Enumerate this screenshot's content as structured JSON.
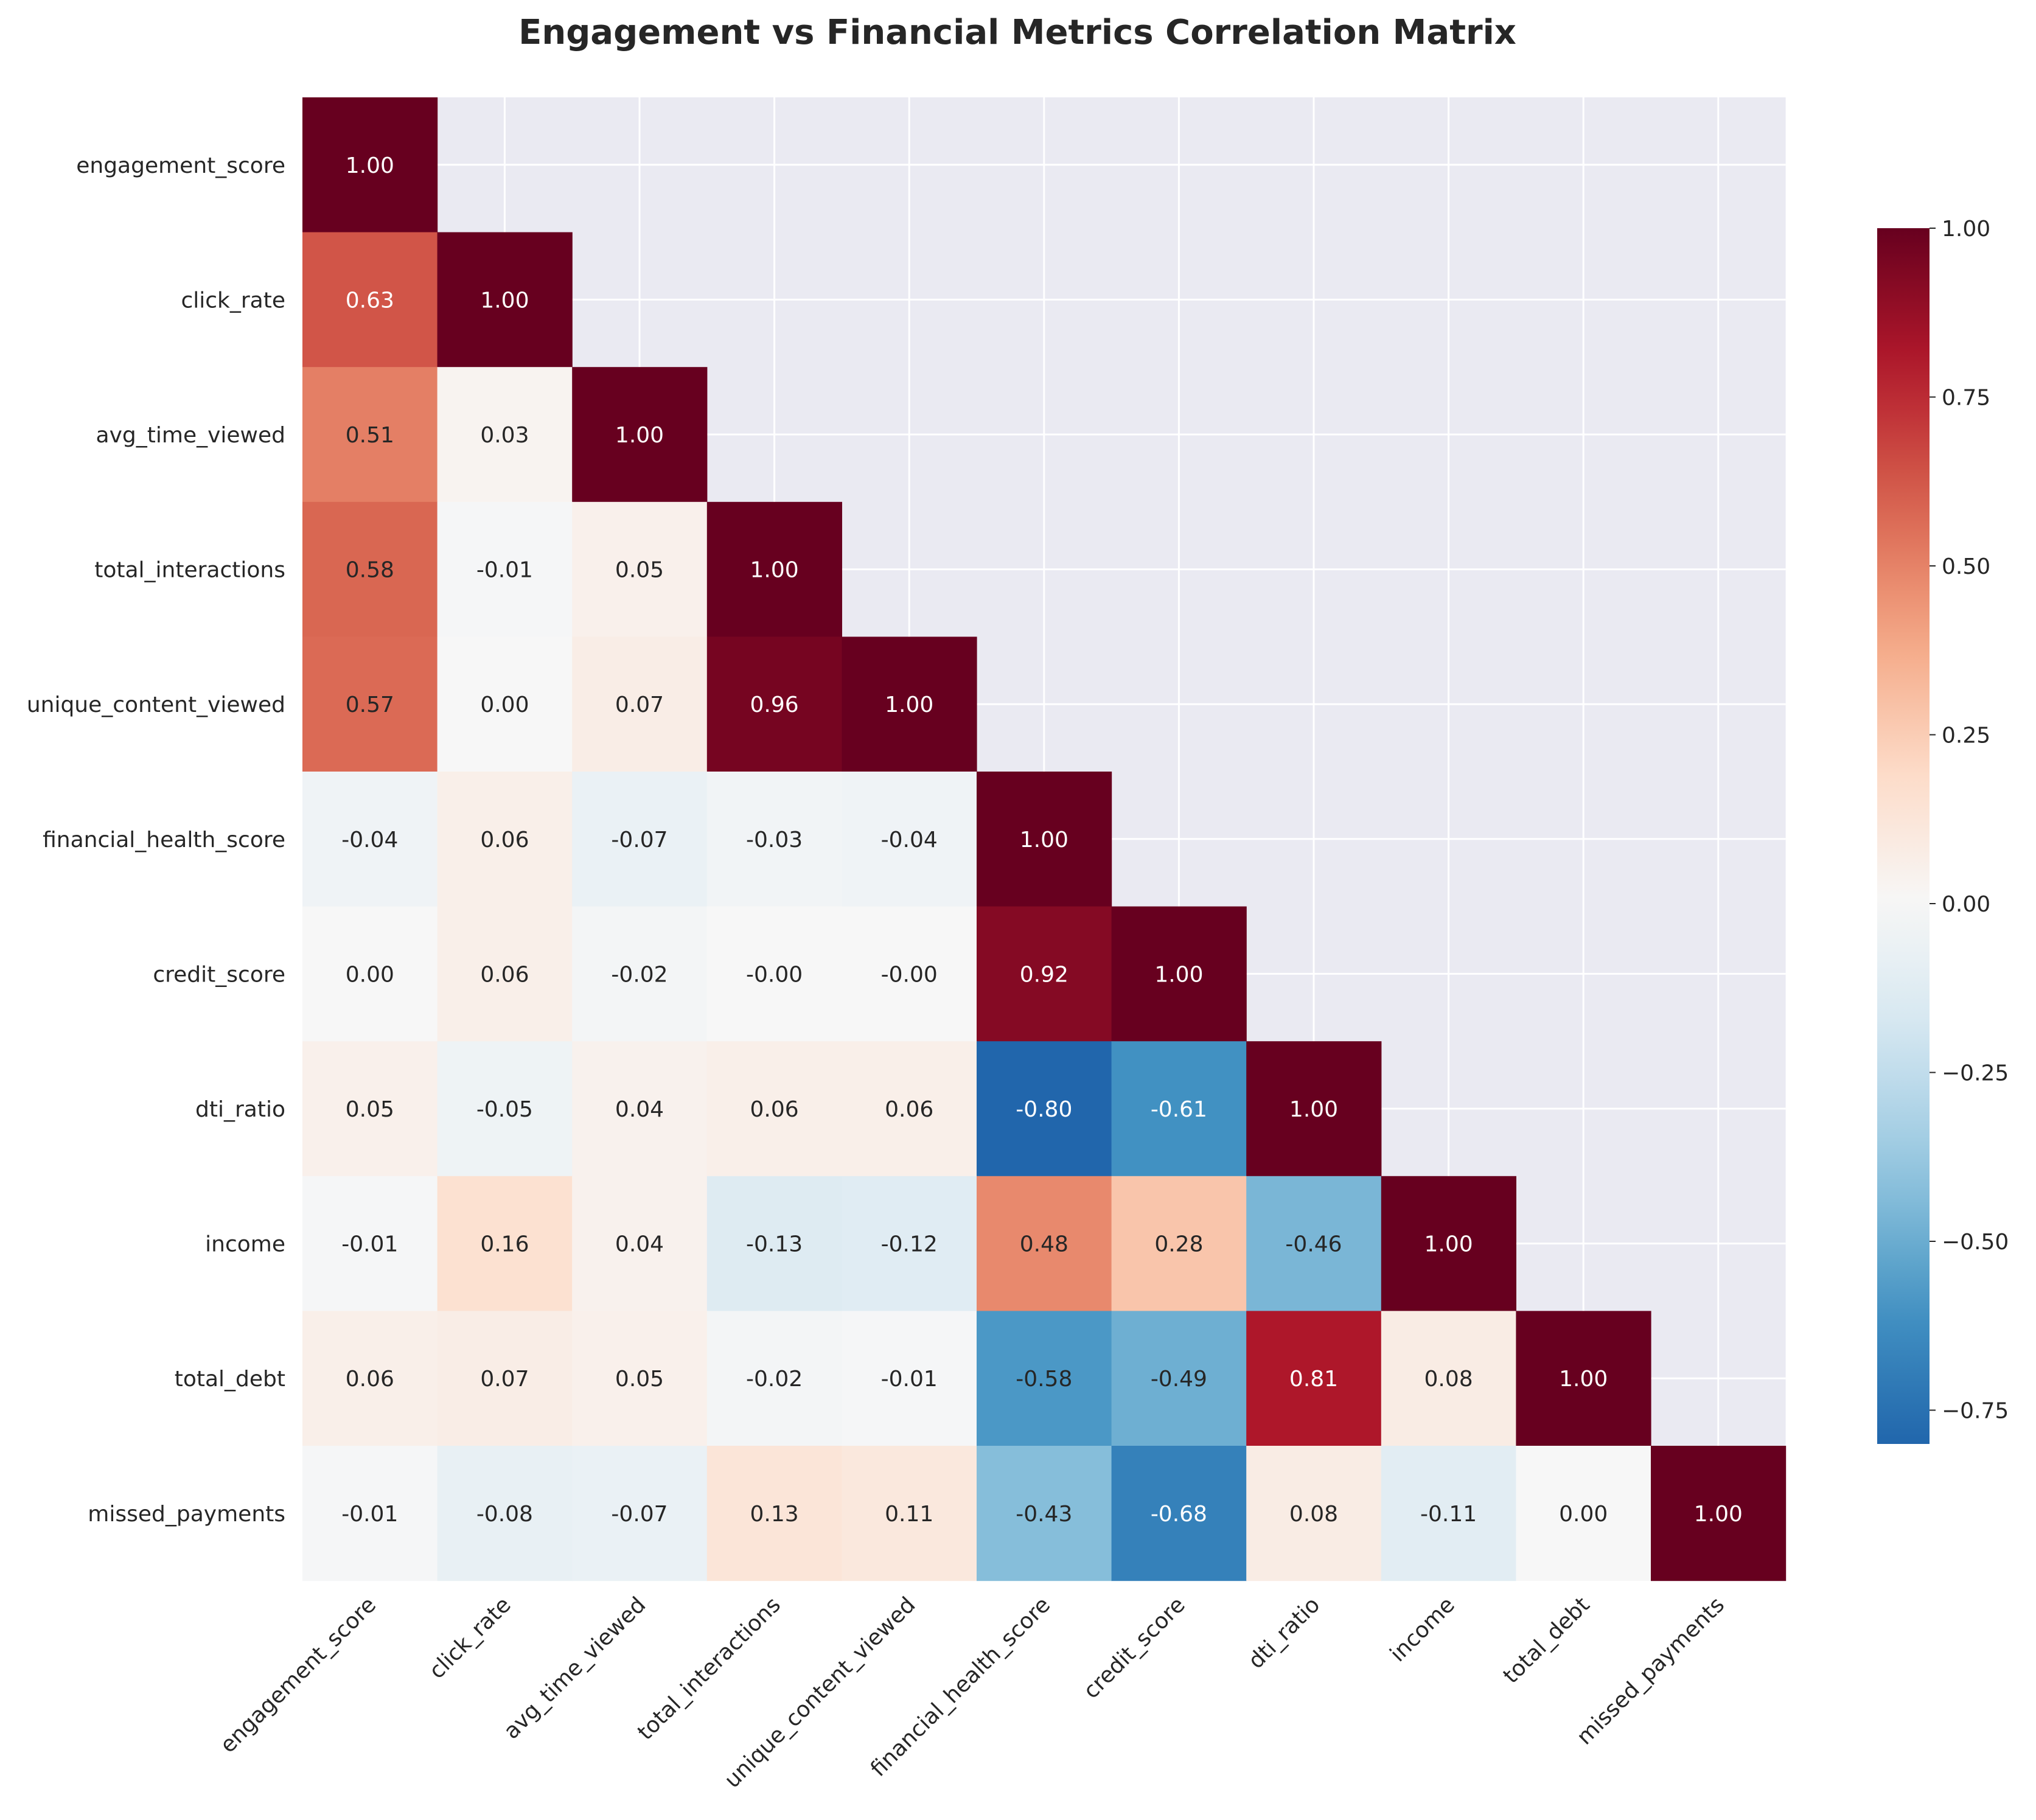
{
  "chart_data": {
    "type": "heatmap",
    "title": "Engagement vs Financial Metrics Correlation Matrix",
    "xlabel": "",
    "ylabel": "",
    "mask": "upper-triangle",
    "grid": true,
    "categories": [
      "engagement_score",
      "click_rate",
      "avg_time_viewed",
      "total_interactions",
      "unique_content_viewed",
      "financial_health_score",
      "credit_score",
      "dti_ratio",
      "income",
      "total_debt",
      "missed_payments"
    ],
    "values": [
      [
        1.0
      ],
      [
        0.63,
        1.0
      ],
      [
        0.51,
        0.03,
        1.0
      ],
      [
        0.58,
        -0.01,
        0.05,
        1.0
      ],
      [
        0.57,
        0.0,
        0.07,
        0.96,
        1.0
      ],
      [
        -0.04,
        0.06,
        -0.07,
        -0.03,
        -0.04,
        1.0
      ],
      [
        0.0,
        0.06,
        -0.02,
        -0.0,
        -0.0,
        0.92,
        1.0
      ],
      [
        0.05,
        -0.05,
        0.04,
        0.06,
        0.06,
        -0.8,
        -0.61,
        1.0
      ],
      [
        -0.01,
        0.16,
        0.04,
        -0.13,
        -0.12,
        0.48,
        0.28,
        -0.46,
        1.0
      ],
      [
        0.06,
        0.07,
        0.05,
        -0.02,
        -0.01,
        -0.58,
        -0.49,
        0.81,
        0.08,
        1.0
      ],
      [
        -0.01,
        -0.08,
        -0.07,
        0.13,
        0.11,
        -0.43,
        -0.68,
        0.08,
        -0.11,
        0.0,
        1.0
      ]
    ],
    "labels": [
      [
        "1.00"
      ],
      [
        "0.63",
        "1.00"
      ],
      [
        "0.51",
        "0.03",
        "1.00"
      ],
      [
        "0.58",
        "-0.01",
        "0.05",
        "1.00"
      ],
      [
        "0.57",
        "0.00",
        "0.07",
        "0.96",
        "1.00"
      ],
      [
        "-0.04",
        "0.06",
        "-0.07",
        "-0.03",
        "-0.04",
        "1.00"
      ],
      [
        "0.00",
        "0.06",
        "-0.02",
        "-0.00",
        "-0.00",
        "0.92",
        "1.00"
      ],
      [
        "0.05",
        "-0.05",
        "0.04",
        "0.06",
        "0.06",
        "-0.80",
        "-0.61",
        "1.00"
      ],
      [
        "-0.01",
        "0.16",
        "0.04",
        "-0.13",
        "-0.12",
        "0.48",
        "0.28",
        "-0.46",
        "1.00"
      ],
      [
        "0.06",
        "0.07",
        "0.05",
        "-0.02",
        "-0.01",
        "-0.58",
        "-0.49",
        "0.81",
        "0.08",
        "1.00"
      ],
      [
        "-0.01",
        "-0.08",
        "-0.07",
        "0.13",
        "0.11",
        "-0.43",
        "-0.68",
        "0.08",
        "-0.11",
        "0.00",
        "1.00"
      ]
    ],
    "colorbar": {
      "colormap": "RdBu_r",
      "vmin": -0.8,
      "vmax": 1.0,
      "center": 0,
      "ticks": [
        1.0,
        0.75,
        0.5,
        0.25,
        0.0,
        -0.25,
        -0.5,
        -0.75
      ],
      "tick_labels": [
        "1.00",
        "0.75",
        "0.50",
        "0.25",
        "0.00",
        "−0.25",
        "−0.50",
        "−0.75"
      ]
    },
    "colors": {
      "plot_background": "#eaeaf2",
      "grid": "#ffffff",
      "text": "#262626"
    }
  }
}
